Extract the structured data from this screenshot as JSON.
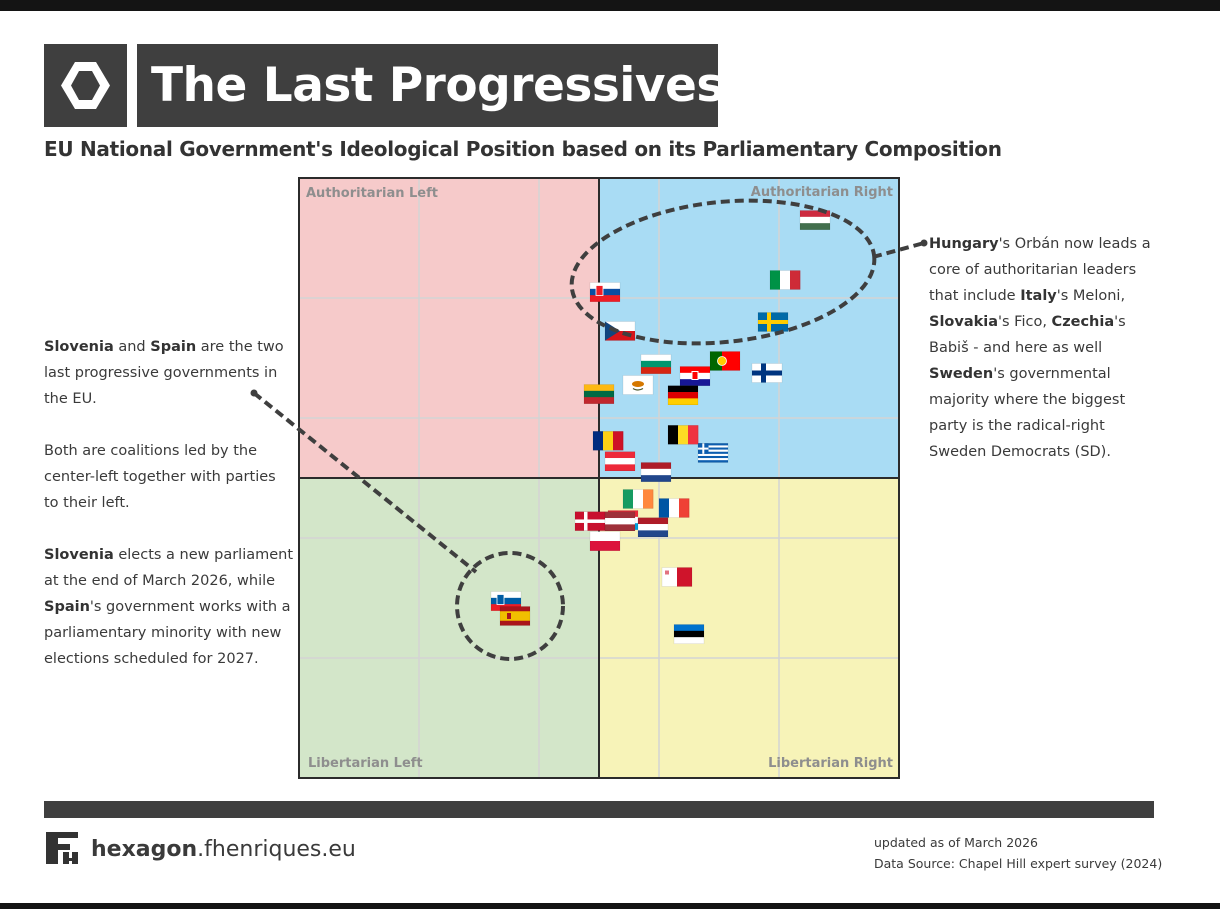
{
  "header": {
    "title": "The Last Progressives",
    "subtitle": "EU National Government's Ideological Position based on its Parliamentary Composition",
    "logo_icon": "hexagon-icon"
  },
  "chart_data": {
    "type": "scatter",
    "xlim": [
      -5,
      5
    ],
    "ylim": [
      -5,
      5
    ],
    "grid": true,
    "quadrants": {
      "top_left": {
        "label": "Authoritarian Left",
        "color": "#f6caca"
      },
      "top_right": {
        "label": "Authoritarian Right",
        "color": "#a9dcf4"
      },
      "bottom_left": {
        "label": "Libertarian Left",
        "color": "#d3e6c9"
      },
      "bottom_right": {
        "label": "Libertarian Right",
        "color": "#f7f3b8"
      }
    },
    "points": [
      {
        "country": "Hungary",
        "flag": "HU",
        "x": 3.6,
        "y": 4.3
      },
      {
        "country": "Italy",
        "flag": "IT",
        "x": 3.1,
        "y": 3.3
      },
      {
        "country": "Slovakia",
        "flag": "SK",
        "x": 0.1,
        "y": 3.1
      },
      {
        "country": "Sweden",
        "flag": "SE",
        "x": 2.9,
        "y": 2.6
      },
      {
        "country": "Czechia",
        "flag": "CZ",
        "x": 0.35,
        "y": 2.45
      },
      {
        "country": "Bulgaria",
        "flag": "BG",
        "x": 0.95,
        "y": 1.9
      },
      {
        "country": "Portugal",
        "flag": "PT",
        "x": 2.1,
        "y": 1.95
      },
      {
        "country": "Croatia",
        "flag": "HR",
        "x": 1.6,
        "y": 1.7
      },
      {
        "country": "Finland",
        "flag": "FI",
        "x": 2.8,
        "y": 1.75
      },
      {
        "country": "Cyprus",
        "flag": "CY",
        "x": 0.65,
        "y": 1.55
      },
      {
        "country": "Lithuania",
        "flag": "LT",
        "x": 0.0,
        "y": 1.4
      },
      {
        "country": "Germany",
        "flag": "DE",
        "x": 1.4,
        "y": 1.38
      },
      {
        "country": "Romania",
        "flag": "RO",
        "x": 0.15,
        "y": 0.62
      },
      {
        "country": "Belgium",
        "flag": "BE",
        "x": 1.4,
        "y": 0.72
      },
      {
        "country": "Greece",
        "flag": "GR",
        "x": 1.9,
        "y": 0.42
      },
      {
        "country": "Austria",
        "flag": "AT",
        "x": 0.35,
        "y": 0.28
      },
      {
        "country": "Netherlands",
        "flag": "NL",
        "x": 0.95,
        "y": 0.1
      },
      {
        "country": "Ireland",
        "flag": "IE",
        "x": 0.65,
        "y": -0.35
      },
      {
        "country": "France",
        "flag": "FR",
        "x": 1.25,
        "y": -0.5
      },
      {
        "country": "Luxembourg",
        "flag": "LU",
        "x": 0.4,
        "y": -0.7
      },
      {
        "country": "Denmark",
        "flag": "DK",
        "x": -0.15,
        "y": -0.72
      },
      {
        "country": "Croatia-Latvia",
        "flag": "LV",
        "x": 0.35,
        "y": -0.72
      },
      {
        "country": "Netherlands-2",
        "flag": "NL",
        "x": 0.9,
        "y": -0.82
      },
      {
        "country": "Poland",
        "flag": "PL",
        "x": 0.1,
        "y": -1.05
      },
      {
        "country": "Malta",
        "flag": "MT",
        "x": 1.3,
        "y": -1.65
      },
      {
        "country": "Estonia",
        "flag": "EE",
        "x": 1.5,
        "y": -2.6
      },
      {
        "country": "Slovenia",
        "flag": "SI",
        "x": -1.55,
        "y": -2.05
      },
      {
        "country": "Spain",
        "flag": "ES",
        "x": -1.4,
        "y": -2.3
      }
    ]
  },
  "notes": {
    "left": {
      "p1": {
        "s1": "Slovenia",
        "t1": " and ",
        "s2": "Spain",
        "t2": " are the two last progressive governments in the EU."
      },
      "p2": "Both are coalitions led by the center-left together with parties to their left.",
      "p3": {
        "s1": "Slovenia",
        "t1": " elects a new parliament at the end of March 2026, while ",
        "s2": "Spain",
        "t2": "'s government works with a parliamentary minority with new elections scheduled for 2027."
      }
    },
    "right": {
      "s1": "Hungary",
      "t1": "'s Orbán now leads a core of authoritarian leaders that include ",
      "s2": "Italy",
      "t2": "'s Meloni, ",
      "s3": "Slovakia",
      "t3": "'s Fico, ",
      "s4": "Czechia",
      "t4": "'s Babiš - and here as well ",
      "s5": "Sweden",
      "t5": "'s governmental majority where the biggest party is the radical-right Sweden Democrats (SD)."
    }
  },
  "footer": {
    "brand_bold": "hexagon",
    "brand_rest": ".fhenriques.eu",
    "brand_icon": "fh-logo-icon",
    "updated": "updated as of March 2026",
    "source": "Data Source: Chapel Hill expert survey (2024)"
  }
}
